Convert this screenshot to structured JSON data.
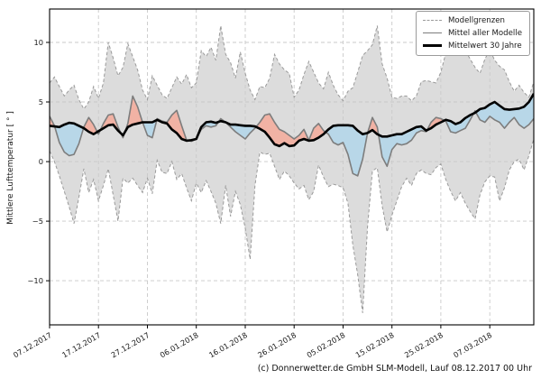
{
  "figure": {
    "ylabel": "Mittlere Lufttemperatur [ ° ]",
    "caption": "(c) Donnerwetter.de GmbH SLM-Modell, Lauf 08.12.2017 00 Uhr"
  },
  "legend": {
    "items": [
      {
        "label": "Modellgrenzen",
        "style": "dashed-gray"
      },
      {
        "label": "Mittel aller Modelle",
        "style": "solid-gray"
      },
      {
        "label": "Mittelwert 30 Jahre",
        "style": "thick-black"
      }
    ]
  },
  "colors": {
    "band_fill": "#dcdcdc",
    "bound_line": "#9a9a9a",
    "grid": "#c9c9c9",
    "above_fill": "#f1b2a4",
    "below_fill": "#b8d7e8",
    "mean_line": "#7d7d7d",
    "climate_line": "#000000",
    "frame": "#000000",
    "tick_text": "#1a1a1a"
  },
  "chart_data": {
    "type": "line",
    "title": "",
    "xlabel": "",
    "ylabel": "Mittlere Lufttemperatur [ ° ]",
    "x_unit": "days since 07.12.2017 (one value per day)",
    "xlim": [
      0,
      99
    ],
    "ylim": [
      -13.7,
      12.8
    ],
    "grid": true,
    "legend_position": "upper right",
    "x_tick_days": [
      0,
      10,
      20,
      30,
      40,
      50,
      60,
      70,
      80,
      90
    ],
    "x_tick_labels": [
      "07.12.2017",
      "17.12.2017",
      "27.12.2017",
      "06.01.2018",
      "16.01.2018",
      "26.01.2018",
      "05.02.2018",
      "15.02.2018",
      "25.02.2018",
      "07.03.2018"
    ],
    "y_ticks": [
      -10,
      -5,
      0,
      5,
      10
    ],
    "y_tick_labels": [
      "−10",
      "−5",
      "0",
      "5",
      "10"
    ],
    "series": [
      {
        "name": "Modellgrenzen (obere Grenze)",
        "style": "dashed",
        "values": [
          6.6,
          7.1,
          6.3,
          5.5,
          6.0,
          6.4,
          5.2,
          4.4,
          5.0,
          6.3,
          5.3,
          6.6,
          10.0,
          8.7,
          7.2,
          7.9,
          9.9,
          8.8,
          7.7,
          6.0,
          5.2,
          7.2,
          6.4,
          5.6,
          5.3,
          6.2,
          7.1,
          6.5,
          7.3,
          6.2,
          6.6,
          9.3,
          8.8,
          9.6,
          8.5,
          11.4,
          9.0,
          8.3,
          7.0,
          9.2,
          7.4,
          6.0,
          5.2,
          6.3,
          6.2,
          7.0,
          9.0,
          8.2,
          7.7,
          7.4,
          5.4,
          6.0,
          7.3,
          8.4,
          7.5,
          6.6,
          6.1,
          7.5,
          6.4,
          5.6,
          5.1,
          5.9,
          6.2,
          7.5,
          8.9,
          9.3,
          9.8,
          11.4,
          8.2,
          7.0,
          5.4,
          5.3,
          5.5,
          5.5,
          5.1,
          5.5,
          6.7,
          6.8,
          6.7,
          6.6,
          7.5,
          9.1,
          9.3,
          9.0,
          9.5,
          9.3,
          8.6,
          7.9,
          7.4,
          8.6,
          9.4,
          8.5,
          8.0,
          7.7,
          6.7,
          5.9,
          6.4,
          5.8,
          5.4,
          6.7
        ]
      },
      {
        "name": "Modellgrenzen (untere Grenze)",
        "style": "dashed",
        "values": [
          0.9,
          0.0,
          -1.2,
          -2.5,
          -3.8,
          -5.2,
          -3.0,
          -0.6,
          -2.6,
          -1.5,
          -3.3,
          -2.0,
          -0.6,
          -2.8,
          -5.0,
          -1.4,
          -1.8,
          -1.4,
          -2.0,
          -2.6,
          -1.4,
          -2.7,
          0.1,
          -0.9,
          -1.0,
          0.0,
          -1.5,
          -1.0,
          -2.2,
          -3.3,
          -1.8,
          -2.6,
          -1.6,
          -2.5,
          -3.5,
          -5.2,
          -2.0,
          -4.6,
          -2.5,
          -3.6,
          -5.6,
          -8.2,
          -2.0,
          0.8,
          0.6,
          0.7,
          -0.4,
          -1.5,
          -0.8,
          -1.2,
          -1.8,
          -2.3,
          -2.0,
          -3.2,
          -2.5,
          -0.3,
          -1.3,
          -2.1,
          -1.9,
          -2.0,
          -2.2,
          -3.5,
          -7.0,
          -9.5,
          -12.7,
          -5.5,
          -0.8,
          -0.5,
          -3.7,
          -5.9,
          -4.5,
          -3.3,
          -2.1,
          -1.4,
          -2.0,
          -1.0,
          -0.7,
          -1.0,
          -1.1,
          -0.5,
          -0.2,
          -1.5,
          -2.5,
          -3.3,
          -2.6,
          -3.5,
          -4.2,
          -4.8,
          -2.8,
          -1.7,
          -1.2,
          -1.3,
          -3.3,
          -2.2,
          -0.7,
          0.0,
          0.2,
          -0.7,
          0.5,
          1.9
        ]
      },
      {
        "name": "Mittel aller Modelle",
        "style": "solid",
        "values": [
          3.8,
          3.0,
          1.6,
          0.8,
          0.5,
          0.6,
          1.5,
          2.9,
          3.7,
          3.1,
          2.3,
          3.2,
          3.9,
          4.0,
          2.9,
          2.0,
          3.2,
          5.5,
          4.6,
          3.3,
          2.2,
          2.0,
          3.6,
          3.4,
          3.3,
          3.9,
          4.3,
          3.0,
          1.8,
          1.7,
          1.9,
          2.7,
          3.0,
          2.9,
          3.0,
          3.6,
          3.3,
          2.9,
          2.5,
          2.2,
          1.9,
          2.4,
          2.8,
          3.3,
          3.9,
          4.0,
          3.3,
          2.7,
          2.5,
          2.2,
          1.9,
          2.2,
          2.7,
          1.8,
          2.8,
          3.2,
          2.6,
          2.3,
          1.6,
          1.4,
          1.6,
          0.6,
          -1.0,
          -1.2,
          0.2,
          2.4,
          3.7,
          2.9,
          0.4,
          -0.4,
          1.0,
          1.5,
          1.4,
          1.5,
          1.8,
          2.4,
          2.6,
          2.5,
          3.3,
          3.7,
          3.6,
          3.4,
          2.5,
          2.4,
          2.6,
          2.8,
          3.5,
          4.25,
          3.5,
          3.3,
          3.8,
          3.5,
          3.3,
          2.8,
          3.3,
          3.7,
          3.1,
          2.8,
          3.1,
          3.6
        ]
      },
      {
        "name": "Mittelwert 30 Jahre",
        "style": "solid-thick",
        "values": [
          3.0,
          2.95,
          2.9,
          3.1,
          3.25,
          3.2,
          3.0,
          2.8,
          2.5,
          2.3,
          2.55,
          2.8,
          3.05,
          3.1,
          2.6,
          2.2,
          2.9,
          3.1,
          3.2,
          3.3,
          3.3,
          3.3,
          3.5,
          3.3,
          3.2,
          2.7,
          2.4,
          1.9,
          1.75,
          1.8,
          1.9,
          2.9,
          3.3,
          3.35,
          3.25,
          3.4,
          3.3,
          3.1,
          3.1,
          3.05,
          3.0,
          3.0,
          2.95,
          2.75,
          2.5,
          2.0,
          1.45,
          1.3,
          1.55,
          1.3,
          1.35,
          1.75,
          1.9,
          1.75,
          1.8,
          2.0,
          2.3,
          2.7,
          3.0,
          3.05,
          3.05,
          3.05,
          3.0,
          2.6,
          2.3,
          2.4,
          2.65,
          2.3,
          2.1,
          2.1,
          2.2,
          2.3,
          2.3,
          2.5,
          2.7,
          2.9,
          2.95,
          2.6,
          2.8,
          3.1,
          3.3,
          3.5,
          3.4,
          3.15,
          3.3,
          3.65,
          3.9,
          4.1,
          4.4,
          4.5,
          4.8,
          5.0,
          4.7,
          4.4,
          4.35,
          4.4,
          4.45,
          4.6,
          5.0,
          5.7
        ]
      }
    ],
    "fills": {
      "band": "between upper and lower model bounds",
      "above": "Mittel aller Modelle above Mittelwert 30 Jahre (red)",
      "below": "Mittel aller Modelle below Mittelwert 30 Jahre (blue)"
    }
  }
}
